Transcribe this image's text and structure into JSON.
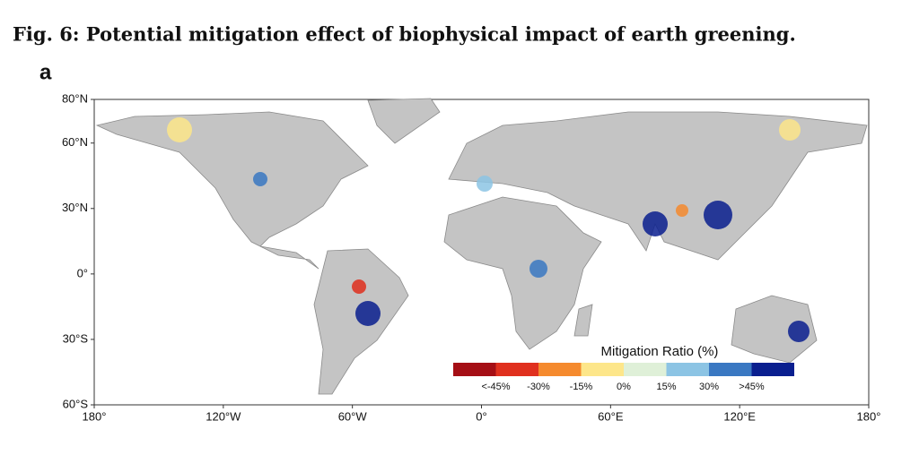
{
  "figure": {
    "title": "Fig. 6: Potential mitigation effect of biophysical impact of earth greening.",
    "panel": "a",
    "lat_ticks": [
      {
        "value": 80,
        "label": "80°N"
      },
      {
        "value": 60,
        "label": "60°N"
      },
      {
        "value": 30,
        "label": "30°N"
      },
      {
        "value": 0,
        "label": "0°"
      },
      {
        "value": -30,
        "label": "30°S"
      },
      {
        "value": -60,
        "label": "60°S"
      }
    ],
    "lon_ticks": [
      {
        "value": -180,
        "label": "180°"
      },
      {
        "value": -120,
        "label": "120°W"
      },
      {
        "value": -60,
        "label": "60°W"
      },
      {
        "value": 0,
        "label": "0°"
      },
      {
        "value": 60,
        "label": "60°E"
      },
      {
        "value": 120,
        "label": "120°E"
      },
      {
        "value": 180,
        "label": "180°"
      }
    ],
    "legend": {
      "title": "Mitigation Ratio (%)",
      "colors": [
        "#a50f15",
        "#e0301e",
        "#f58a2e",
        "#fde68a",
        "#dff0d8",
        "#8cc4e4",
        "#3a78c2",
        "#0a1f8f"
      ],
      "labels": [
        "<-45%",
        "-30%",
        "-15%",
        "0%",
        "15%",
        "30%",
        ">45%"
      ]
    }
  }
}
